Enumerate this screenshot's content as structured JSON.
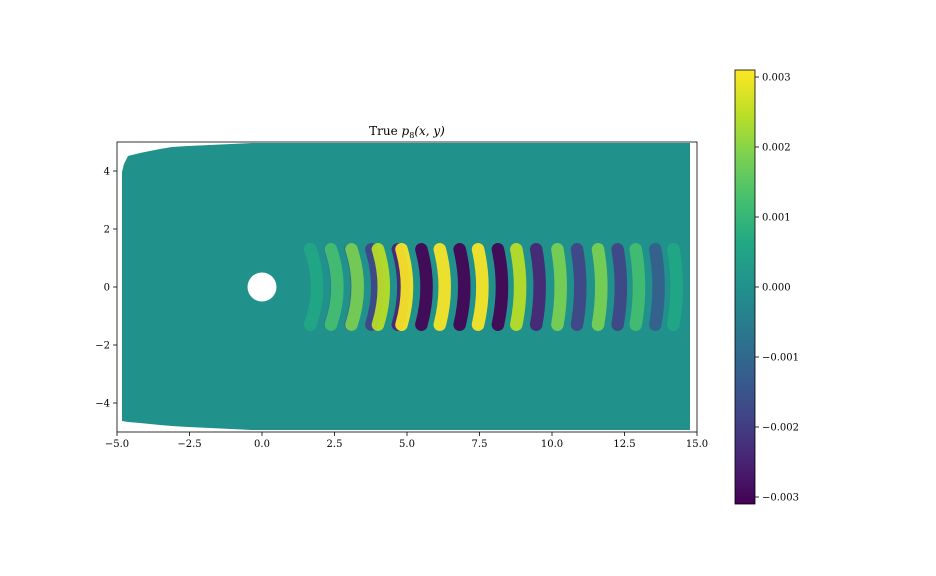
{
  "chart_data": {
    "type": "heatmap",
    "title": "True p_8(x, y)",
    "title_parts": {
      "prefix": "True ",
      "var": "p",
      "sub": "8",
      "args": "(x, y)"
    },
    "xlabel": "",
    "ylabel": "",
    "xlim": [
      -5.0,
      15.0
    ],
    "ylim": [
      -5.0,
      5.0
    ],
    "x_ticks": [
      -5.0,
      -2.5,
      0.0,
      2.5,
      5.0,
      7.5,
      10.0,
      12.5,
      15.0
    ],
    "x_tick_labels": [
      "−5.0",
      "−2.5",
      "0.0",
      "2.5",
      "5.0",
      "7.5",
      "10.0",
      "12.5",
      "15.0"
    ],
    "y_ticks": [
      -4,
      -2,
      0,
      2,
      4
    ],
    "y_tick_labels": [
      "−4",
      "−2",
      "0",
      "2",
      "4"
    ],
    "colormap": "viridis",
    "background_value": 0.0,
    "cylinder": {
      "center": [
        0.0,
        0.0
      ],
      "radius": 0.5
    },
    "wave_crests_x": [
      1.9,
      2.6,
      3.3,
      4.2,
      5.0,
      6.3,
      7.6,
      8.9,
      10.3,
      11.7,
      13.0,
      14.3
    ],
    "wave_amplitudes": [
      0.0008,
      0.0014,
      0.002,
      0.0026,
      0.0031,
      0.0031,
      0.0028,
      0.0024,
      0.002,
      0.0016,
      0.0012,
      0.0009
    ],
    "wavelength": 1.35,
    "wake_half_width": 1.3,
    "grid": false,
    "colorbar": {
      "range": [
        -0.0031,
        0.0031
      ],
      "ticks": [
        0.003,
        0.002,
        0.001,
        0.0,
        -0.001,
        -0.002,
        -0.003
      ],
      "tick_labels": [
        "0.003",
        "0.002",
        "0.001",
        "0.000",
        "−0.001",
        "−0.002",
        "−0.003"
      ]
    }
  }
}
